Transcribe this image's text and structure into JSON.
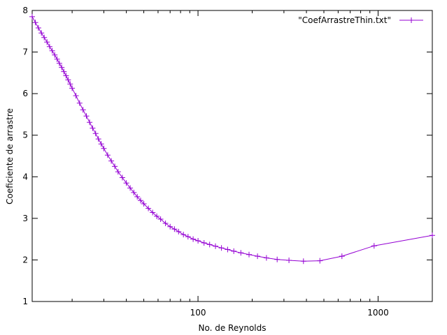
{
  "chart_data": {
    "type": "line",
    "title": "",
    "xlabel": "No. de Reynolds",
    "ylabel": "Coeficiente de arrastre",
    "xscale": "log",
    "xlim": [
      12,
      2000
    ],
    "ylim": [
      1,
      8
    ],
    "x_ticks": [
      100,
      1000
    ],
    "x_tick_labels": [
      "100",
      "1000"
    ],
    "y_ticks": [
      1,
      2,
      3,
      4,
      5,
      6,
      7,
      8
    ],
    "y_tick_labels": [
      "1",
      "2",
      "3",
      "4",
      "5",
      "6",
      "7",
      "8"
    ],
    "grid": false,
    "legend_position": "top-right",
    "series": [
      {
        "name": "\"CoefArrastreThin.txt\"",
        "color": "#9400d3",
        "marker": "plus",
        "x": [
          12.0,
          12.5,
          13.0,
          13.5,
          14.0,
          14.5,
          15.0,
          15.5,
          16.0,
          16.5,
          17.0,
          17.5,
          18.0,
          18.5,
          19.0,
          19.5,
          20.0,
          21.0,
          22.0,
          23.0,
          24.0,
          25.0,
          26.0,
          27.0,
          28.0,
          29.0,
          30.0,
          31.5,
          33.0,
          34.5,
          36.0,
          38.0,
          40.0,
          42.0,
          44.0,
          46.0,
          48.0,
          50.0,
          53.0,
          56.0,
          59.0,
          62.0,
          66.0,
          70.0,
          74.0,
          78.0,
          83.0,
          88.0,
          94.0,
          100.0,
          108.0,
          116.0,
          125.0,
          135.0,
          146.0,
          158.0,
          173.0,
          192.0,
          214.0,
          240.0,
          275.0,
          320.0,
          385.0,
          475.0,
          630.0,
          950.0,
          2000.0
        ],
        "y": [
          7.85,
          7.71,
          7.58,
          7.46,
          7.35,
          7.24,
          7.13,
          7.03,
          6.93,
          6.83,
          6.73,
          6.63,
          6.53,
          6.43,
          6.33,
          6.23,
          6.13,
          5.95,
          5.77,
          5.61,
          5.46,
          5.31,
          5.17,
          5.04,
          4.91,
          4.79,
          4.68,
          4.52,
          4.38,
          4.25,
          4.12,
          3.98,
          3.85,
          3.73,
          3.62,
          3.52,
          3.43,
          3.35,
          3.24,
          3.14,
          3.05,
          2.98,
          2.88,
          2.8,
          2.74,
          2.68,
          2.61,
          2.56,
          2.5,
          2.46,
          2.41,
          2.37,
          2.33,
          2.29,
          2.25,
          2.21,
          2.17,
          2.13,
          2.09,
          2.05,
          2.01,
          1.99,
          1.97,
          1.98,
          2.09,
          2.34,
          2.59
        ]
      }
    ]
  }
}
